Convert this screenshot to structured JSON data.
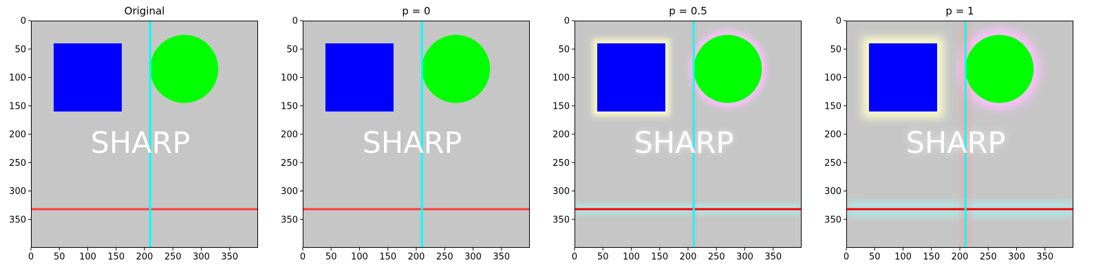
{
  "chart_data": {
    "type": "image-grid",
    "axis_range": [
      0,
      400
    ],
    "x_ticks": [
      0,
      50,
      100,
      150,
      200,
      250,
      300,
      350
    ],
    "y_ticks": [
      0,
      50,
      100,
      150,
      200,
      250,
      300,
      350
    ],
    "scene": {
      "background": "#c6c6c6",
      "square": {
        "x": 40,
        "y": 40,
        "w": 120,
        "h": 120,
        "color": "#0000ff"
      },
      "circle": {
        "cx": 270,
        "cy": 85,
        "r": 60,
        "color": "#00ff00"
      },
      "vline": {
        "x": 210,
        "color": "#00ffff"
      },
      "hline": {
        "y": 332,
        "color": "#ff3b3b"
      },
      "text": {
        "value": "SHARP",
        "x": 105,
        "y": 233,
        "color": "#ffffff"
      }
    },
    "panels": [
      {
        "title": "Original",
        "p": null,
        "halo": 0
      },
      {
        "title": "p = 0",
        "p": 0,
        "halo": 0
      },
      {
        "title": "p = 0.5",
        "p": 0.5,
        "halo": 0.55
      },
      {
        "title": "p = 1",
        "p": 1,
        "halo": 1
      }
    ],
    "halo_colors": {
      "square": "#ffffc8",
      "circle": "#ffc0ff",
      "hline": "#a8f0f0",
      "vline": "#ff9a9a",
      "text": "#777777"
    }
  }
}
